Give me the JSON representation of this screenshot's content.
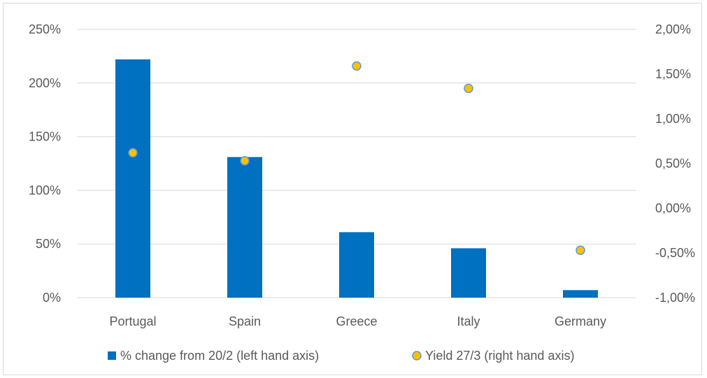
{
  "chart_data": {
    "type": "bar",
    "categories": [
      "Portugal",
      "Spain",
      "Greece",
      "Italy",
      "Germany"
    ],
    "series": [
      {
        "name": "% change from 20/2 (left hand axis)",
        "type": "bar",
        "axis": "left",
        "values": [
          222,
          131,
          61,
          46,
          7
        ],
        "color": "#0070c0"
      },
      {
        "name": "Yield 27/3 (right hand axis)",
        "type": "scatter",
        "axis": "right",
        "values": [
          0.62,
          0.53,
          1.59,
          1.34,
          -0.47
        ],
        "color": "#ffc000",
        "outline": "#5b9bd5"
      }
    ],
    "left_axis": {
      "min": 0,
      "max": 250,
      "step": 50,
      "ticks": [
        "0%",
        "50%",
        "100%",
        "150%",
        "200%",
        "250%"
      ]
    },
    "right_axis": {
      "min": -1.0,
      "max": 2.0,
      "step": 0.5,
      "ticks": [
        "-1,00%",
        "-0,50%",
        "0,00%",
        "0,50%",
        "1,00%",
        "1,50%",
        "2,00%"
      ]
    },
    "grid": true,
    "legend_position": "bottom"
  }
}
